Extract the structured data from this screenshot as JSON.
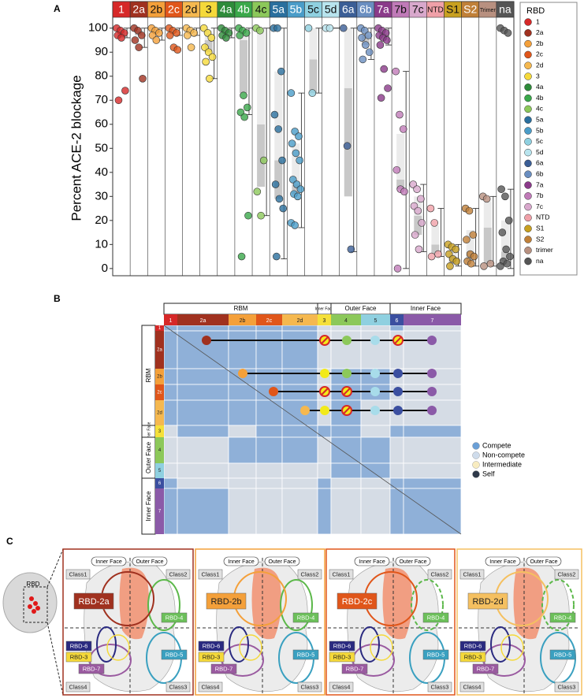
{
  "chart_data": {
    "type": "box",
    "panel_label": "A",
    "y_label": "Percent ACE-2 blockage",
    "legend_title": "RBD",
    "categories": [
      "1",
      "2a",
      "2b",
      "2c",
      "2d",
      "3",
      "4a",
      "4b",
      "4c",
      "5a",
      "5b",
      "5c",
      "5d",
      "6a",
      "6b",
      "7a",
      "7b",
      "7c",
      "NTD",
      "S1",
      "S2",
      "Trimer",
      "na"
    ],
    "legend_labels": [
      "1",
      "2a",
      "2b",
      "2c",
      "2d",
      "3",
      "4a",
      "4b",
      "4c",
      "5a",
      "5b",
      "5c",
      "5d",
      "6a",
      "6b",
      "7a",
      "7b",
      "7c",
      "NTD",
      "S1",
      "S2",
      "trimer",
      "na"
    ],
    "colors": [
      "#d62828",
      "#a0311f",
      "#f4a03a",
      "#e0561a",
      "#f5b84f",
      "#f5d93a",
      "#2e8b3a",
      "#3aa84a",
      "#8cc85a",
      "#2a6f9e",
      "#4a9cc8",
      "#8fd0e0",
      "#b8e4ee",
      "#3b5e96",
      "#6a8ec0",
      "#8b3a8a",
      "#c07ab8",
      "#d8a8cc",
      "#f0a0a8",
      "#c8a020",
      "#c08038",
      "#b89080",
      "#555555"
    ],
    "boxes": [
      {
        "q1": 96,
        "median": 99,
        "q3": 100,
        "low": 96,
        "high": 100,
        "points": [
          100,
          99,
          98,
          97,
          96,
          74,
          70
        ]
      },
      {
        "q1": 97,
        "median": 99,
        "q3": 100,
        "low": 92,
        "high": 100,
        "points": [
          100,
          99,
          97,
          95,
          92,
          79
        ]
      },
      {
        "q1": 98,
        "median": 99,
        "q3": 100,
        "low": 95,
        "high": 100,
        "points": [
          100,
          99,
          98,
          97,
          95
        ]
      },
      {
        "q1": 98,
        "median": 99,
        "q3": 100,
        "low": 97,
        "high": 100,
        "points": [
          100,
          99,
          98,
          97,
          92,
          91
        ]
      },
      {
        "q1": 98,
        "median": 99,
        "q3": 100,
        "low": 97,
        "high": 100,
        "points": [
          100,
          99,
          98,
          97,
          92
        ]
      },
      {
        "q1": 90,
        "median": 95,
        "q3": 99,
        "low": 79,
        "high": 100,
        "points": [
          100,
          98,
          96,
          92,
          90,
          88,
          86,
          79
        ]
      },
      {
        "q1": 98,
        "median": 99,
        "q3": 100,
        "low": 96,
        "high": 100,
        "points": [
          100,
          99,
          98,
          97,
          96
        ]
      },
      {
        "q1": 73,
        "median": 95,
        "q3": 99,
        "low": 64,
        "high": 100,
        "points": [
          100,
          99,
          98,
          97,
          72,
          67,
          65,
          63,
          22,
          5
        ]
      },
      {
        "q1": 34,
        "median": 60,
        "q3": 100,
        "low": 22,
        "high": 100,
        "points": [
          100,
          99,
          45,
          32,
          22
        ]
      },
      {
        "q1": 29,
        "median": 45,
        "q3": 82,
        "low": 4,
        "high": 100,
        "points": [
          100,
          100,
          82,
          64,
          58,
          45,
          35,
          29,
          25,
          5
        ]
      },
      {
        "q1": 31,
        "median": 35,
        "q3": 52,
        "low": 17,
        "high": 73,
        "points": [
          73,
          57,
          55,
          52,
          48,
          45,
          37,
          35,
          33,
          31,
          30,
          19,
          18
        ]
      },
      {
        "q1": 73,
        "median": 87,
        "q3": 100,
        "low": 73,
        "high": 100,
        "points": [
          100,
          73
        ]
      },
      {
        "q1": 100,
        "median": 100,
        "q3": 100,
        "low": 100,
        "high": 100,
        "points": [
          100,
          100
        ]
      },
      {
        "q1": 30,
        "median": 75,
        "q3": 100,
        "low": 7,
        "high": 100,
        "points": [
          100,
          51,
          8
        ]
      },
      {
        "q1": 93,
        "median": 97,
        "q3": 100,
        "low": 87,
        "high": 100,
        "points": [
          100,
          99,
          97,
          96,
          93,
          90,
          87
        ]
      },
      {
        "q1": 95,
        "median": 98,
        "q3": 100,
        "low": 93,
        "high": 100,
        "points": [
          100,
          99,
          98,
          97,
          96,
          95,
          93,
          83,
          75,
          71
        ]
      },
      {
        "q1": 33,
        "median": 37,
        "q3": 56,
        "low": 0,
        "high": 82,
        "points": [
          82,
          64,
          58,
          41,
          33,
          32,
          0
        ]
      },
      {
        "q1": 14,
        "median": 22,
        "q3": 30,
        "low": 7,
        "high": 35,
        "points": [
          35,
          33,
          29,
          26,
          24,
          19,
          14,
          8
        ]
      },
      {
        "q1": 6,
        "median": 10,
        "q3": 18,
        "low": 5,
        "high": 25,
        "points": [
          25,
          19,
          6,
          5
        ]
      },
      {
        "q1": 2,
        "median": 5,
        "q3": 8,
        "low": 1,
        "high": 10,
        "points": [
          10,
          9,
          8,
          6,
          4,
          3,
          1
        ]
      },
      {
        "q1": 3,
        "median": 7,
        "q3": 16,
        "low": 1,
        "high": 25,
        "points": [
          25,
          24,
          14,
          12,
          6,
          5,
          3,
          2
        ]
      },
      {
        "q1": 2,
        "median": 17,
        "q3": 28,
        "low": 1,
        "high": 30,
        "points": [
          30,
          29,
          2,
          1
        ]
      },
      {
        "q1": 3,
        "median": 7,
        "q3": 20,
        "low": 0,
        "high": 33,
        "points": [
          100,
          99,
          98,
          33,
          30,
          20,
          15,
          8,
          5,
          3,
          2,
          1
        ]
      }
    ],
    "ylim": [
      -3,
      104.5
    ],
    "yticks": [
      0,
      10,
      20,
      30,
      40,
      50,
      60,
      70,
      80,
      90,
      100
    ]
  },
  "panel_b": {
    "panel_label": "B",
    "header_groups": [
      "RBM",
      "Inner Face",
      "Outer Face",
      "Inner Face"
    ],
    "columns": [
      "1",
      "2a",
      "2b",
      "2c",
      "2d",
      "3",
      "4",
      "5",
      "6",
      "7"
    ],
    "rows": [
      "1",
      "2a",
      "2b",
      "2c",
      "2d",
      "3",
      "4",
      "5",
      "6",
      "7"
    ],
    "row_groups": [
      "RBM",
      "Inner Face",
      "Outer Face",
      "Inner Face"
    ],
    "legend": [
      "Compete",
      "Non-compete",
      "Intermediate",
      "Self"
    ]
  },
  "panel_c": {
    "panel_label": "C",
    "structure_label": "RBD",
    "panels": [
      {
        "title": "RBD-2a",
        "inner_face": "Inner Face",
        "outer_face": "Outer Face",
        "class1": "Class1",
        "class2": "Class2",
        "class3": "Class3",
        "class4": "Class4",
        "rbd_4": "RBD-4",
        "rbd_6": "RBD-6",
        "rbd_3": "RBD-3",
        "rbd_5": "RBD-5",
        "rbd_7": "RBD-7"
      },
      {
        "title": "RBD-2b",
        "inner_face": "Inner Face",
        "outer_face": "Outer Face",
        "class1": "Class1",
        "class2": "Class2",
        "class3": "Class3",
        "class4": "Class4",
        "rbd_4": "RBD-4",
        "rbd_6": "RBD-6",
        "rbd_3": "RBD-3",
        "rbd_5": "RBD-5",
        "rbd_7": "RBD-7"
      },
      {
        "title": "RBD-2c",
        "inner_face": "Inner Face",
        "outer_face": "Outer Face",
        "class1": "Class1",
        "class2": "Class2",
        "class3": "Class3",
        "class4": "Class4",
        "rbd_4": "RBD-4",
        "rbd_6": "RBD-6",
        "rbd_3": "RBD-3",
        "rbd_5": "RBD-5",
        "rbd_7": "RBD-7"
      },
      {
        "title": "RBD-2d",
        "inner_face": "Inner Face",
        "outer_face": "Outer Face",
        "class1": "Class1",
        "class2": "Class2",
        "class3": "Class3",
        "class4": "Class4",
        "rbd_4": "RBD-4",
        "rbd_6": "RBD-6",
        "rbd_3": "RBD-3",
        "rbd_5": "RBD-5",
        "rbd_7": "RBD-7"
      }
    ]
  }
}
